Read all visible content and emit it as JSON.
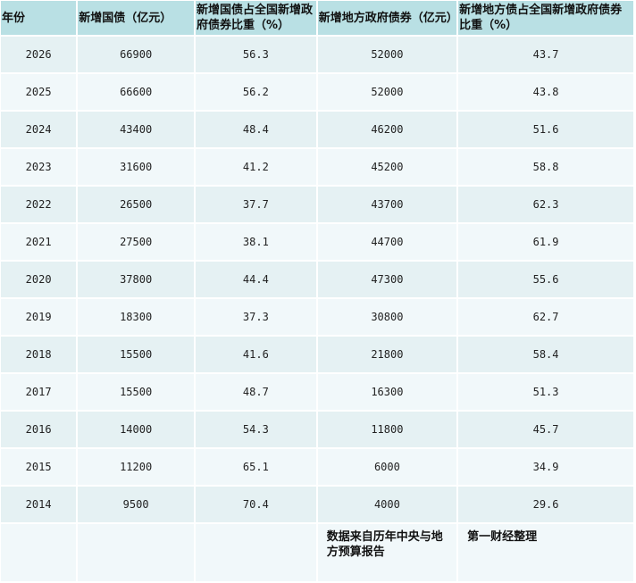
{
  "headers": [
    "年份",
    "新增国债（亿元）",
    "新增国债占全国新增政府债券比重（%）",
    "新增地方政府债券（亿元）",
    "新增地方债占全国新增政府债券比重（%）"
  ],
  "rows": [
    [
      "2026",
      "66900",
      "56.3",
      "52000",
      "43.7"
    ],
    [
      "2025",
      "66600",
      "56.2",
      "52000",
      "43.8"
    ],
    [
      "2024",
      "43400",
      "48.4",
      "46200",
      "51.6"
    ],
    [
      "2023",
      "31600",
      "41.2",
      "45200",
      "58.8"
    ],
    [
      "2022",
      "26500",
      "37.7",
      "43700",
      "62.3"
    ],
    [
      "2021",
      "27500",
      "38.1",
      "44700",
      "61.9"
    ],
    [
      "2020",
      "37800",
      "44.4",
      "47300",
      "55.6"
    ],
    [
      "2019",
      "18300",
      "37.3",
      "30800",
      "62.7"
    ],
    [
      "2018",
      "15500",
      "41.6",
      "21800",
      "58.4"
    ],
    [
      "2017",
      "15500",
      "48.7",
      "16300",
      "51.3"
    ],
    [
      "2016",
      "14000",
      "54.3",
      "11800",
      "45.7"
    ],
    [
      "2015",
      "11200",
      "65.1",
      "6000",
      "34.9"
    ],
    [
      "2014",
      "9500",
      "70.4",
      "4000",
      "29.6"
    ]
  ],
  "footer": {
    "source": "数据来自历年中央与地方预算报告",
    "compiler": "第一财经整理"
  },
  "colors": {
    "header_bg": "#b9e0e4",
    "row_odd": "#e5f1f3",
    "row_even": "#f1f8fa"
  }
}
